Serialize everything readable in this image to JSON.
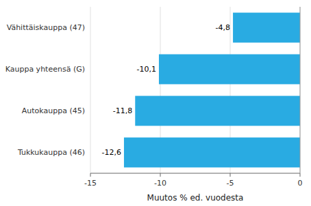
{
  "chart_data": {
    "type": "bar",
    "orientation": "horizontal",
    "categories": [
      "Tukkukauppa (46)",
      "Autokauppa (45)",
      "Kauppa yhteensä (G)",
      "Vähittäiskauppa (47)"
    ],
    "values": [
      -12.6,
      -11.8,
      -10.1,
      -4.8
    ],
    "value_labels": [
      "-12,6",
      "-11,8",
      "-10,1",
      "-4,8"
    ],
    "data_labels": true,
    "color": "#29ABE2",
    "xlabel": "Muutos % ed. vuodesta",
    "xlim": [
      -15,
      0
    ],
    "xticks": [
      -15,
      -10,
      -5,
      0
    ],
    "grid": true
  }
}
